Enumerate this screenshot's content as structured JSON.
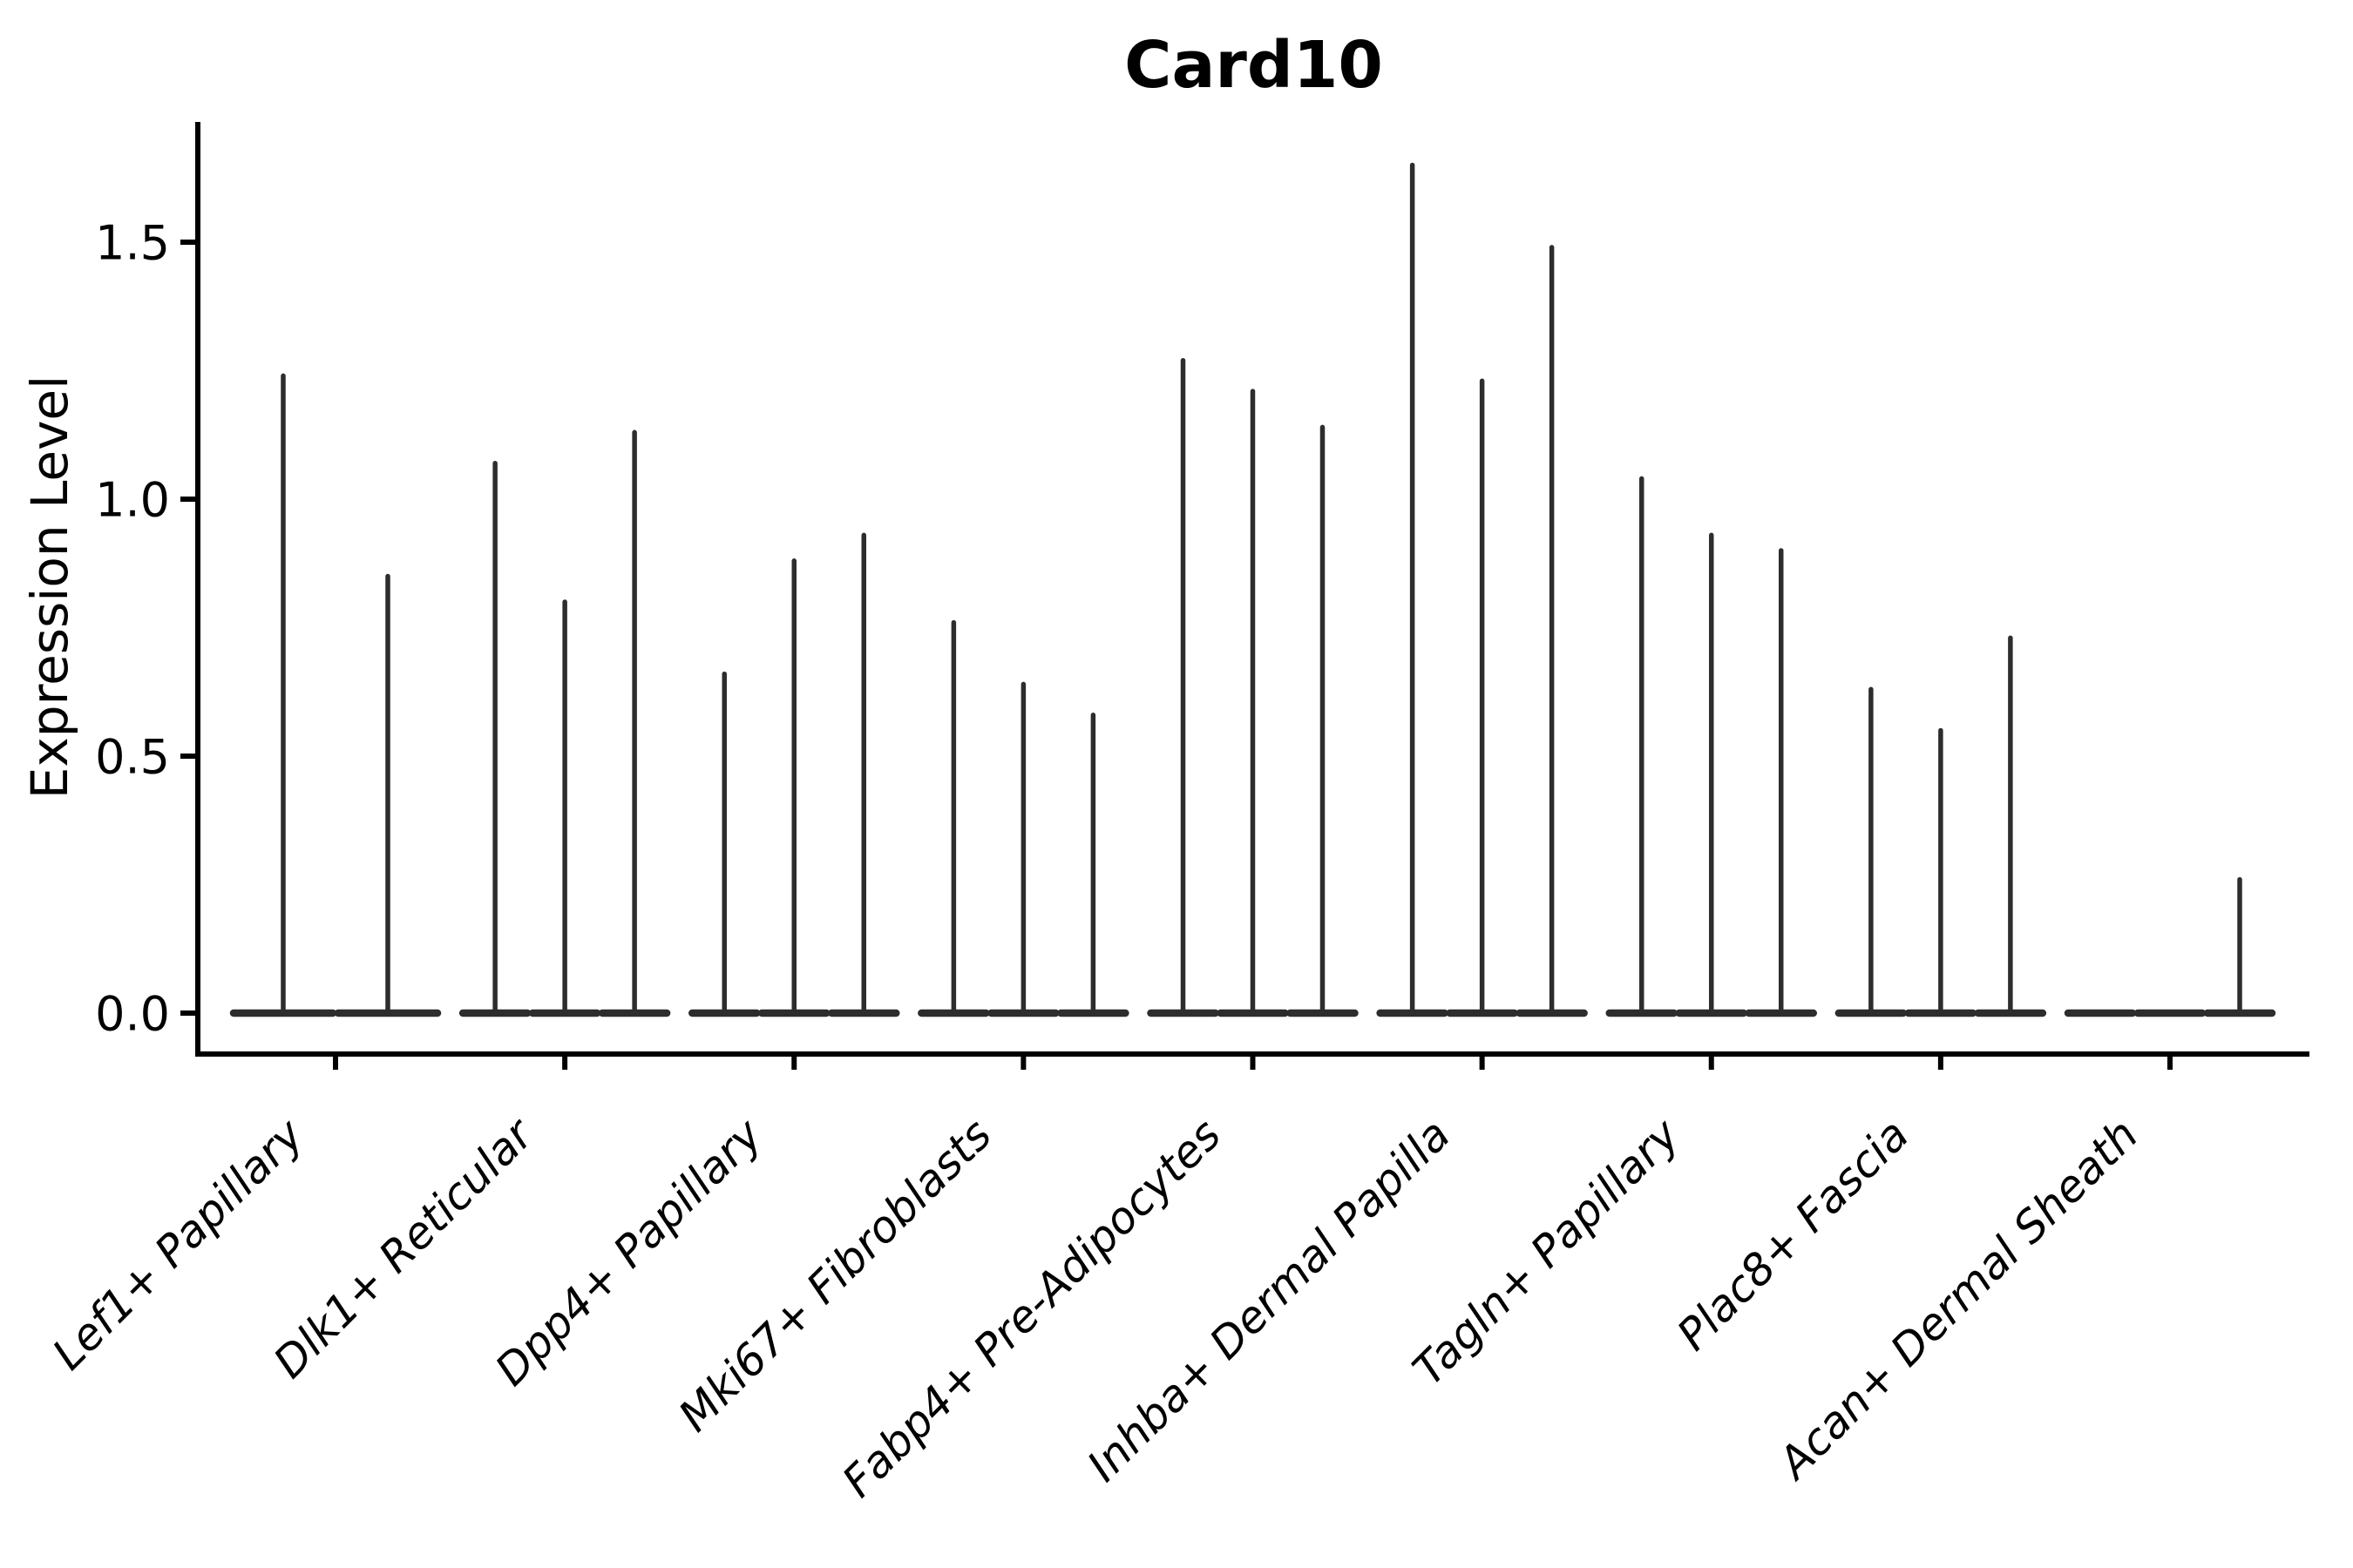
{
  "chart_data": {
    "type": "violin",
    "title": "Card10",
    "ylabel": "Expression Level",
    "xlabel": "",
    "yticks": [
      0.0,
      0.5,
      1.0,
      1.5
    ],
    "ylim": [
      -0.08,
      1.73
    ],
    "grid": false,
    "legend": "none",
    "categories": [
      "Lef1+ Papillary",
      "Dlk1+ Reticular",
      "Dpp4+ Papillary",
      "Mki67+ Fibroblasts",
      "Fabp4+ Pre-Adipocytes",
      "Inhba+ Dermal Papilla",
      "Tagln+ Papillary",
      "Plac8+ Fascia",
      "Acan+ Dermal Sheath"
    ],
    "groups": [
      {
        "label": "Lef1+ Papillary",
        "violins": [
          1.24,
          0.85
        ]
      },
      {
        "label": "Dlk1+ Reticular",
        "violins": [
          1.07,
          0.8,
          1.13
        ]
      },
      {
        "label": "Dpp4+ Papillary",
        "violins": [
          0.66,
          0.88,
          0.93
        ]
      },
      {
        "label": "Mki67+ Fibroblasts",
        "violins": [
          0.76,
          0.64,
          0.58
        ]
      },
      {
        "label": "Fabp4+ Pre-Adipocytes",
        "violins": [
          1.27,
          1.21,
          1.14
        ]
      },
      {
        "label": "Inhba+ Dermal Papilla",
        "violins": [
          1.65,
          1.23,
          1.49
        ]
      },
      {
        "label": "Tagln+ Papillary",
        "violins": [
          1.04,
          0.93,
          0.9
        ]
      },
      {
        "label": "Plac8+ Fascia",
        "violins": [
          0.63,
          0.55,
          0.73
        ]
      },
      {
        "label": "Acan+ Dermal Sheath",
        "violins": [
          0,
          0,
          0.26
        ]
      }
    ],
    "colors": {
      "violin": "#2d2d2d",
      "axis": "#000000",
      "text": "#000000",
      "background": "#ffffff"
    }
  }
}
